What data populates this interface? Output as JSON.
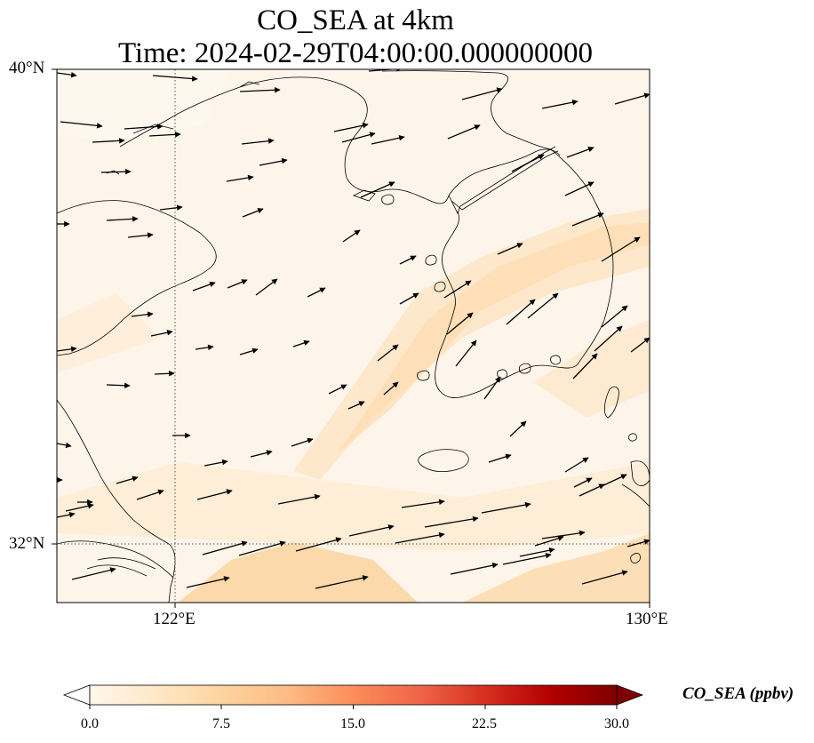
{
  "figure": {
    "title_line1": "CO_SEA at 4km",
    "title_line2": "Time: 2024-02-29T04:00:00.000000000"
  },
  "map": {
    "projection": "plate-carree",
    "lon_range": [
      120,
      130
    ],
    "lat_range": [
      31,
      40
    ],
    "gridlines": {
      "lon": [
        122
      ],
      "lat": [
        32
      ],
      "style": "dotted"
    },
    "lat_tick_labels": [
      "40°N",
      "32°N"
    ],
    "lon_tick_labels": [
      "122°E",
      "130°E"
    ],
    "coastline_color": "#000000",
    "vector_field": "wind arrows (black)"
  },
  "colorbar": {
    "label": "CO_SEA (ppbv)",
    "min": 0.0,
    "max": 30.0,
    "extend": "both",
    "colormap": "OrRd",
    "colors": [
      "#fff7ec",
      "#fee8c8",
      "#fdd49e",
      "#fdbb84",
      "#fc8d59",
      "#ef6548",
      "#d7301f",
      "#b30000",
      "#7f0000"
    ],
    "ticks": [
      "0.0",
      "7.5",
      "15.0",
      "22.5",
      "30.0"
    ]
  }
}
